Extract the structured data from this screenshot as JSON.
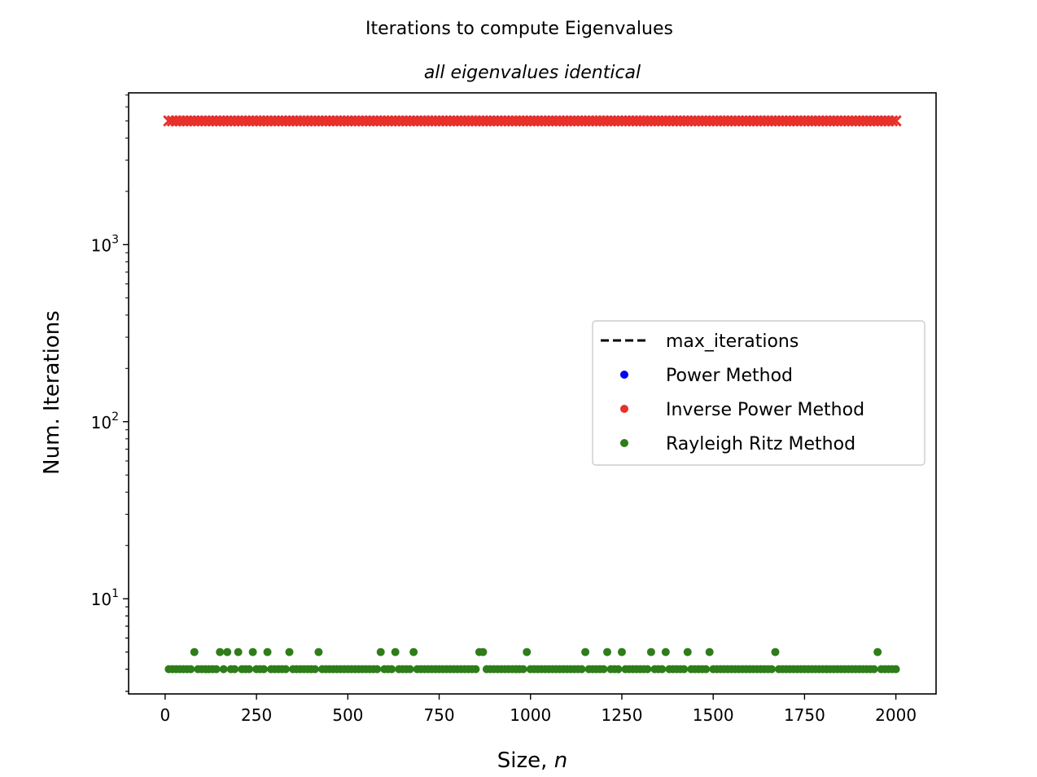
{
  "chart_data": {
    "type": "scatter",
    "title": "Iterations to compute Eigenvalues",
    "subtitle": "all eigenvalues identical",
    "xlabel": "Size, ",
    "xlabel_italic": "n",
    "ylabel": "Num. Iterations",
    "xlim": [
      -100,
      2110
    ],
    "ylim": [
      2.9,
      7200
    ],
    "yscale": "log",
    "grid": false,
    "legend_placement": "center-right",
    "x_ticks": [
      0,
      250,
      500,
      750,
      1000,
      1250,
      1500,
      1750,
      2000
    ],
    "x_tick_labels": [
      "0",
      "250",
      "500",
      "750",
      "1000",
      "1250",
      "1500",
      "1750",
      "2000"
    ],
    "y_major_ticks": [
      10,
      100,
      1000
    ],
    "y_tick_labels": [
      {
        "value": 10,
        "base": "10",
        "exp": "1"
      },
      {
        "value": 100,
        "base": "10",
        "exp": "2"
      },
      {
        "value": 1000,
        "base": "10",
        "exp": "3"
      }
    ],
    "max_iterations": 5000,
    "series": [
      {
        "name": "max_iterations",
        "kind": "dashed-line",
        "color": "#000000",
        "value": 5000
      },
      {
        "name": "Power Method",
        "kind": "points",
        "color": "#0000ff",
        "marker": "x",
        "x_start": 10,
        "x_end": 2000,
        "x_step": 10,
        "y_constant": 5000
      },
      {
        "name": "Inverse Power Method",
        "kind": "points",
        "color": "#e8302a",
        "x_start": 10,
        "x_end": 2000,
        "x_step": 10,
        "y_constant": 5000
      },
      {
        "name": "Rayleigh Ritz Method",
        "kind": "points",
        "color": "#2e7d1a",
        "x_start": 10,
        "x_end": 2000,
        "x_step": 10,
        "y_default": 4,
        "y_five_at": [
          80,
          150,
          170,
          200,
          240,
          280,
          340,
          420,
          590,
          630,
          680,
          860,
          870,
          990,
          1150,
          1210,
          1250,
          1330,
          1370,
          1430,
          1490,
          1670,
          1950
        ]
      }
    ]
  }
}
